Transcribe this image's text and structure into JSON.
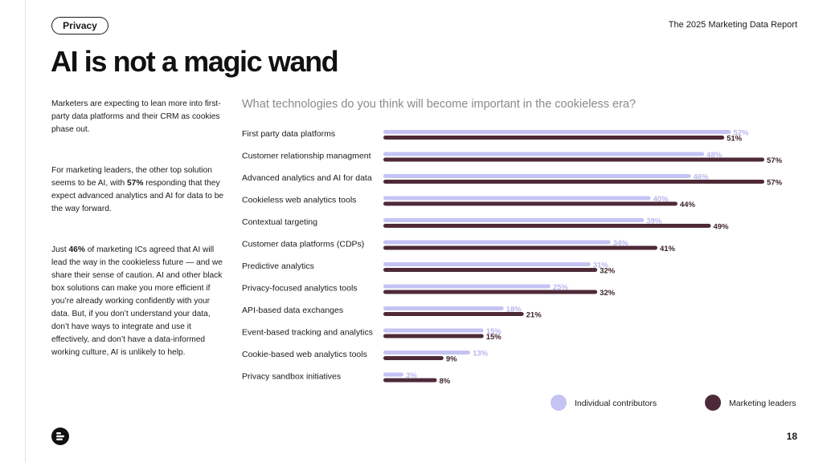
{
  "header": {
    "tag_label": "Privacy",
    "report_title": "The 2025 Marketing Data Report",
    "page_title": "AI is not a magic wand"
  },
  "body": {
    "p1": "Marketers are expecting to lean more into first-party data platforms and their CRM as cookies phase out.",
    "p2_before": "For marketing leaders, the other top solution seems to be AI, with ",
    "p2_strong": "57%",
    "p2_after": " responding that they expect advanced analytics and AI for data to be the way forward.",
    "p3_before": "Just ",
    "p3_strong": "46%",
    "p3_after": " of marketing ICs agreed that AI will lead the way in the cookieless future — and we share their sense of caution. AI and other black box solutions can make you more efficient if you’re already working confidently with your data. But, if you don’t understand your data, don’t have ways to integrate and use it effectively, and don’t have a data-informed working culture, AI is unlikely to help."
  },
  "chart_data": {
    "type": "bar",
    "orientation": "horizontal",
    "title": "What technologies do you think will become important in the cookieless era?",
    "categories": [
      "First party data platforms",
      "Customer relationship managment",
      "Advanced analytics and AI for data",
      "Cookieless web analytics tools",
      "Contextual targeting",
      "Customer data platforms (CDPs)",
      "Predictive analytics",
      "Privacy-focused analytics tools",
      "API-based data exchanges",
      "Event-based tracking and analytics",
      "Cookie-based web analytics tools",
      "Privacy sandbox initiatives"
    ],
    "series": [
      {
        "name": "Individual contributors",
        "color": "#c5c3f4",
        "values": [
          52,
          48,
          46,
          40,
          39,
          34,
          31,
          25,
          18,
          15,
          13,
          3
        ]
      },
      {
        "name": "Marketing leaders",
        "color": "#4e2a38",
        "values": [
          51,
          57,
          57,
          44,
          49,
          41,
          32,
          32,
          21,
          15,
          9,
          8
        ]
      }
    ],
    "value_suffix": "%",
    "xlim": [
      0,
      57
    ],
    "legend_position": "bottom-right",
    "grid": false
  },
  "footer": {
    "page_number": "18",
    "logo_icon": "brand-logo-icon"
  }
}
